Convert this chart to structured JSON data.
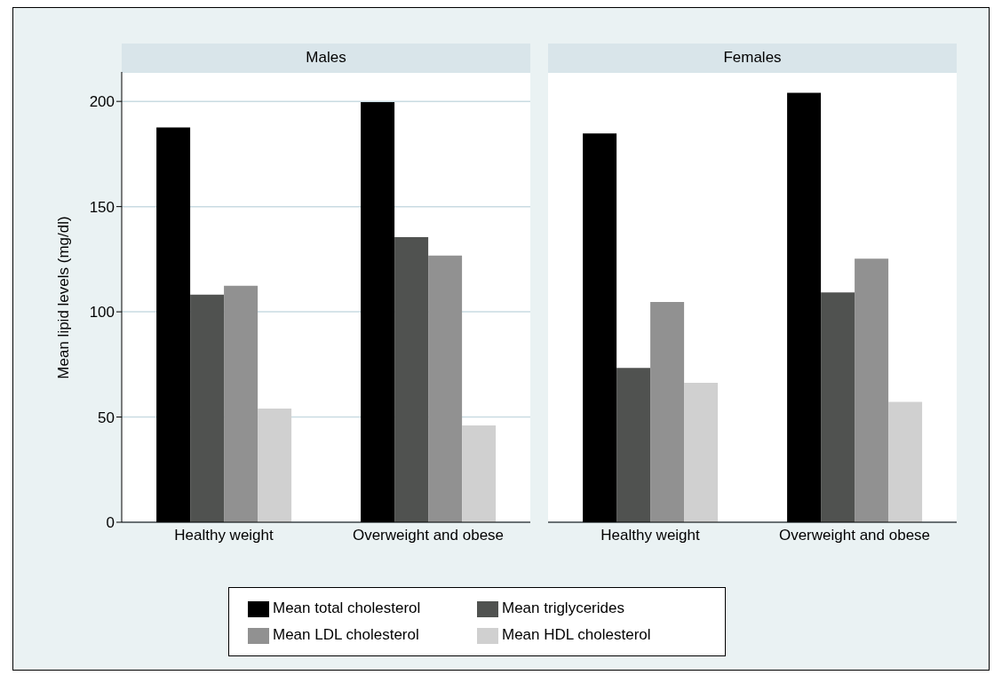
{
  "chart_data": [
    {
      "type": "bar",
      "title": "Males",
      "ylabel": "Mean lipid levels (mg/dl)",
      "categories": [
        "Healthy weight",
        "Overweight and obese"
      ],
      "ylim": [
        0,
        214
      ],
      "yticks": [
        0,
        50,
        100,
        150,
        200
      ],
      "grid": "y",
      "legend": "bottom",
      "series": [
        {
          "name": "Mean total cholesterol",
          "color": "#000000",
          "values": [
            187.6,
            199.6
          ]
        },
        {
          "name": "Mean triglycerides",
          "color": "#505250",
          "values": [
            108.2,
            135.5
          ]
        },
        {
          "name": "Mean LDL cholesterol",
          "color": "#919191",
          "values": [
            112.4,
            126.7
          ]
        },
        {
          "name": "Mean HDL cholesterol",
          "color": "#d0d0d0",
          "values": [
            54.0,
            46.0
          ]
        }
      ]
    },
    {
      "type": "bar",
      "title": "Females",
      "categories": [
        "Healthy weight",
        "Overweight and obese"
      ],
      "ylim": [
        0,
        214
      ],
      "yticks": [
        0,
        50,
        100,
        150,
        200
      ],
      "grid": "y",
      "tick_labels": "x",
      "series": [
        {
          "color": "#000000",
          "values": [
            184.8,
            204.1
          ]
        },
        {
          "color": "#505250",
          "values": [
            73.3,
            109.2
          ]
        },
        {
          "color": "#919191",
          "values": [
            104.7,
            125.3
          ]
        },
        {
          "color": "#d0d0d0",
          "values": [
            66.3,
            57.2
          ]
        }
      ]
    }
  ]
}
